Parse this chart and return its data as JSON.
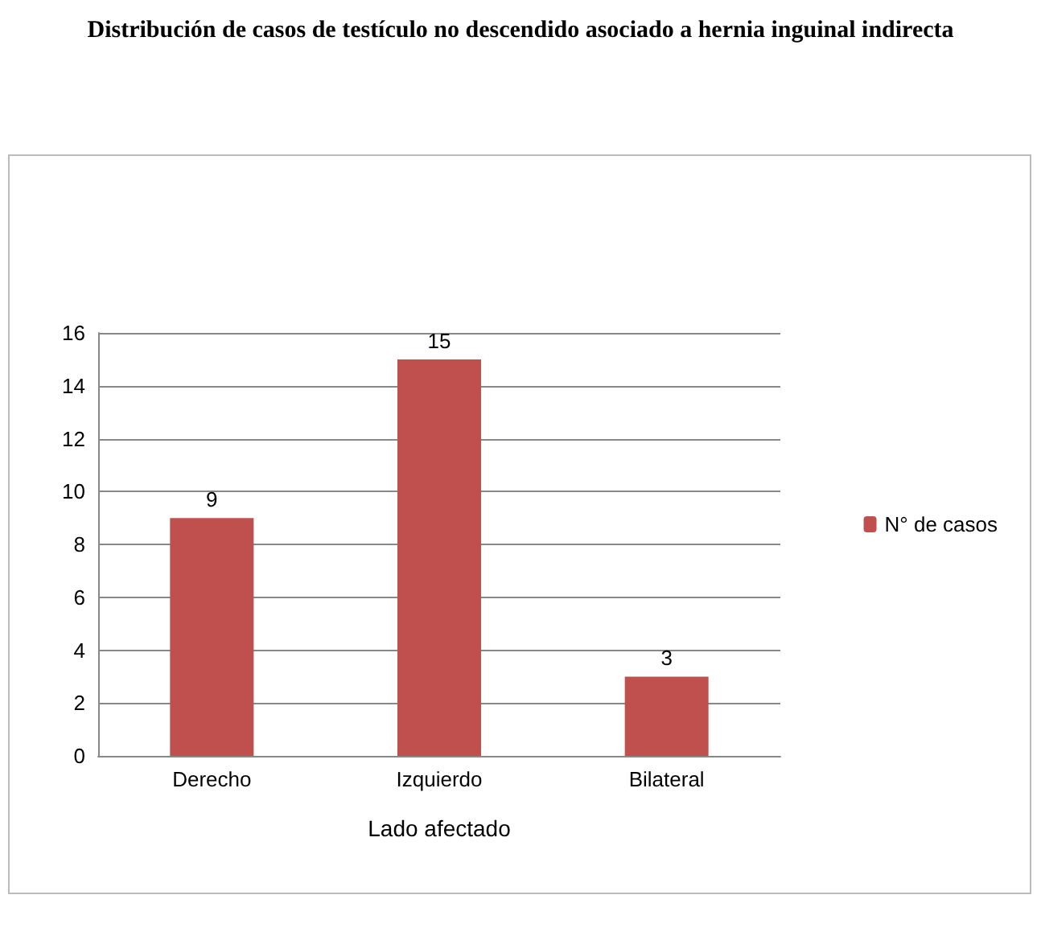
{
  "chart_data": {
    "type": "bar",
    "title": "Distribución de casos de testículo no descendido asociado a hernia inguinal indirecta",
    "xlabel": "Lado afectado",
    "categories": [
      "Derecho",
      "Izquierdo",
      "Bilateral"
    ],
    "series": [
      {
        "name": "N° de casos",
        "color": "#c0504d",
        "values": [
          9,
          15,
          3
        ]
      }
    ],
    "ylim": [
      0,
      16
    ],
    "yticks": [
      0,
      2,
      4,
      6,
      8,
      10,
      12,
      14,
      16
    ],
    "grid": "y",
    "legend": "right",
    "data_labels": true
  }
}
